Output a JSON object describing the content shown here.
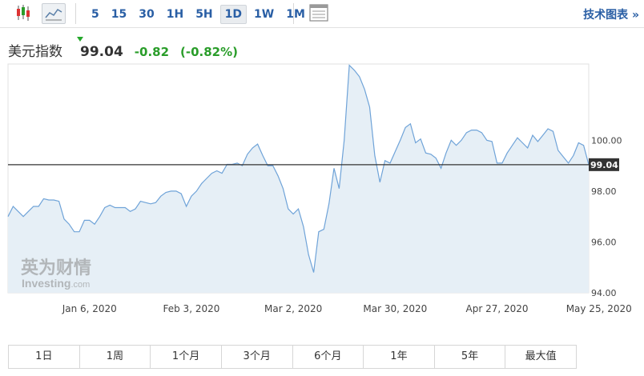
{
  "toolbar": {
    "chart_type_icons": [
      "candlestick-icon",
      "area-chart-icon"
    ],
    "intervals": [
      "5",
      "15",
      "30",
      "1H",
      "5H",
      "1D",
      "1W",
      "1M"
    ],
    "active_interval": "1D",
    "table_icon": "table-icon",
    "tech_link": "技术图表 »"
  },
  "quote": {
    "name": "美元指数",
    "price": "99.04",
    "change": "-0.82",
    "change_pct": "(-0.82%)",
    "up_color": "#25a82c"
  },
  "watermark": {
    "cn": "英为财情",
    "en": "Investing",
    "suffix": ".com"
  },
  "ranges": [
    "1日",
    "1周",
    "1个月",
    "3个月",
    "6个月",
    "1年",
    "5年",
    "最大值"
  ],
  "chart_data": {
    "type": "area",
    "title": "",
    "xlabel": "",
    "ylabel": "",
    "ylim": [
      94,
      103
    ],
    "y_ticks": [
      94,
      96,
      98,
      100
    ],
    "y_tick_labels": [
      "94.00",
      "96.00",
      "98.00",
      "100.00"
    ],
    "current_value": 99.04,
    "current_label": "99.04",
    "x_ticks": [
      {
        "label": "Jan 6, 2020",
        "index": 16
      },
      {
        "label": "Feb 3, 2020",
        "index": 36
      },
      {
        "label": "Mar 2, 2020",
        "index": 56
      },
      {
        "label": "Mar 30, 2020",
        "index": 76
      },
      {
        "label": "Apr 27, 2020",
        "index": 96
      },
      {
        "label": "May 25, 2020",
        "index": 116
      }
    ],
    "grid": false,
    "colors": {
      "line": "#6fa3d8",
      "fill": "#e6eff6",
      "current_line": "#333333"
    },
    "series": [
      {
        "values": [
          97.0,
          97.4,
          97.2,
          97.0,
          97.2,
          97.4,
          97.4,
          97.7,
          97.65,
          97.65,
          97.6,
          96.9,
          96.7,
          96.4,
          96.4,
          96.85,
          96.85,
          96.7,
          97.0,
          97.35,
          97.45,
          97.35,
          97.35,
          97.35,
          97.2,
          97.3,
          97.6,
          97.55,
          97.5,
          97.55,
          97.8,
          97.95,
          98.0,
          98.0,
          97.9,
          97.4,
          97.8,
          98.0,
          98.3,
          98.5,
          98.7,
          98.8,
          98.7,
          99.05,
          99.05,
          99.1,
          99.0,
          99.45,
          99.7,
          99.85,
          99.4,
          99.0,
          99.0,
          98.6,
          98.1,
          97.3,
          97.1,
          97.3,
          96.6,
          95.5,
          94.8,
          96.4,
          96.5,
          97.5,
          98.9,
          98.1,
          100.0,
          102.95,
          102.75,
          102.5,
          102.0,
          101.3,
          99.4,
          98.35,
          99.2,
          99.1,
          99.55,
          100.0,
          100.5,
          100.65,
          99.9,
          100.05,
          99.5,
          99.45,
          99.3,
          98.9,
          99.5,
          100.0,
          99.8,
          100.0,
          100.3,
          100.4,
          100.4,
          100.3,
          100.0,
          99.95,
          99.1,
          99.1,
          99.5,
          99.8,
          100.1,
          99.9,
          99.7,
          100.2,
          99.95,
          100.2,
          100.45,
          100.35,
          99.6,
          99.35,
          99.1,
          99.4,
          99.9,
          99.8,
          99.04
        ]
      }
    ]
  }
}
